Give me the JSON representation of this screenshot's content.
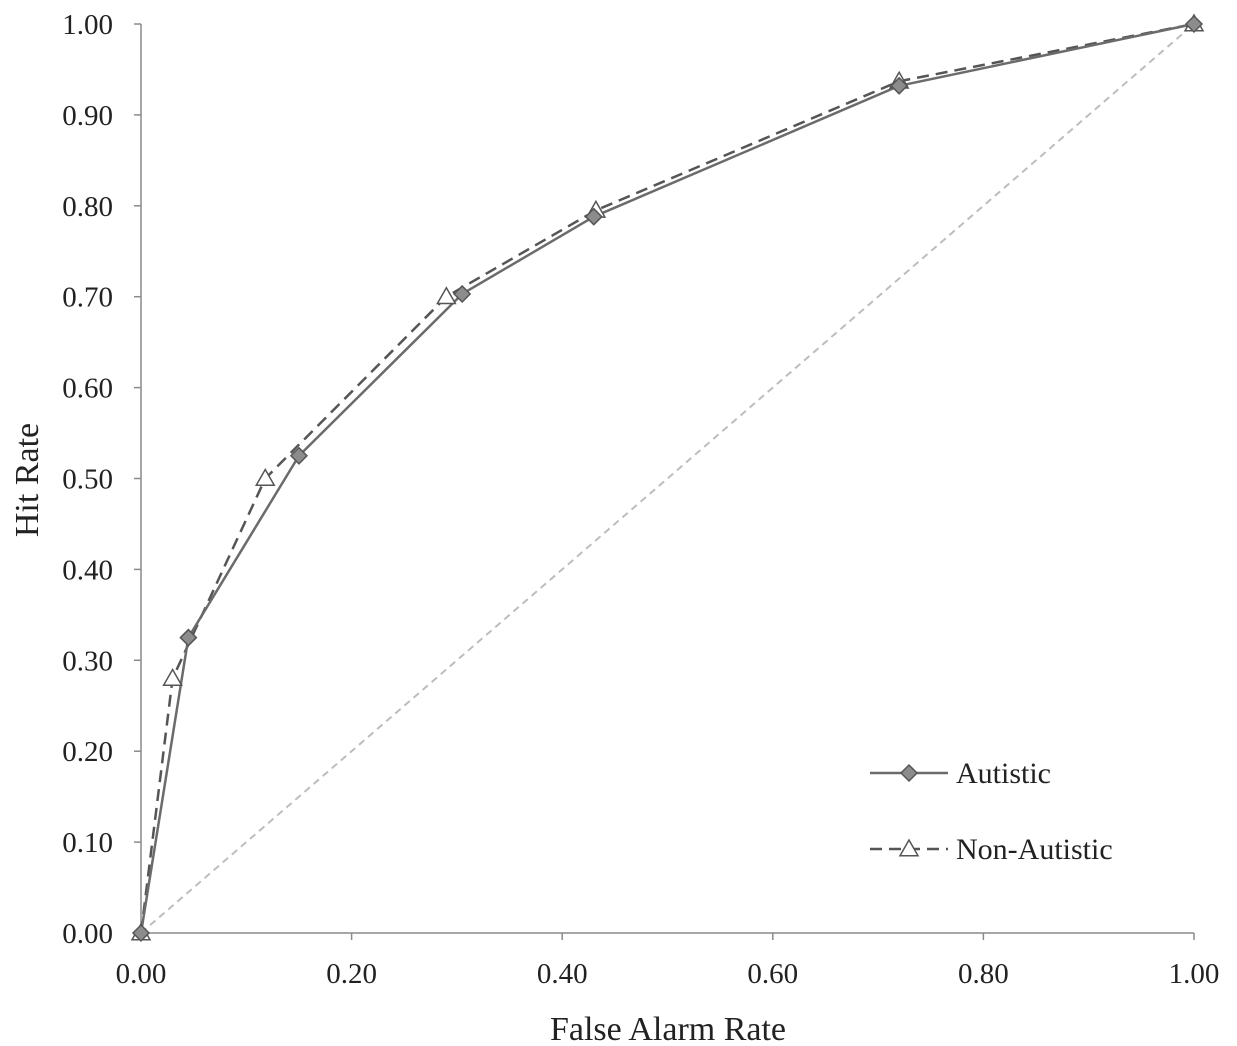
{
  "chart_data": {
    "type": "line",
    "xlabel": "False Alarm Rate",
    "ylabel": "Hit Rate",
    "xlim": [
      0,
      1
    ],
    "ylim": [
      0,
      1
    ],
    "x_ticks": [
      "0.00",
      "0.20",
      "0.40",
      "0.60",
      "0.80",
      "1.00"
    ],
    "y_ticks": [
      "0.00",
      "0.10",
      "0.20",
      "0.30",
      "0.40",
      "0.50",
      "0.60",
      "0.70",
      "0.80",
      "0.90",
      "1.00"
    ],
    "grid": false,
    "legend_position": "bottom-right",
    "reference_line": {
      "x": [
        0,
        1
      ],
      "y": [
        0,
        1
      ],
      "color": "#bdbdbd",
      "dashed": true
    },
    "series": [
      {
        "name": "Autistic",
        "marker": "diamond",
        "line_style": "solid",
        "color": "#6b6b6b",
        "marker_fill": "#8c8c8c",
        "x": [
          0.0,
          0.045,
          0.15,
          0.305,
          0.43,
          0.72,
          1.0
        ],
        "y": [
          0.0,
          0.325,
          0.525,
          0.703,
          0.788,
          0.932,
          1.0
        ]
      },
      {
        "name": "Non-Autistic",
        "marker": "triangle",
        "line_style": "dashed",
        "color": "#555555",
        "marker_fill": "#ffffff",
        "x": [
          0.0,
          0.03,
          0.118,
          0.29,
          0.432,
          0.72,
          1.0
        ],
        "y": [
          0.0,
          0.28,
          0.5,
          0.7,
          0.795,
          0.937,
          1.0
        ]
      }
    ]
  }
}
